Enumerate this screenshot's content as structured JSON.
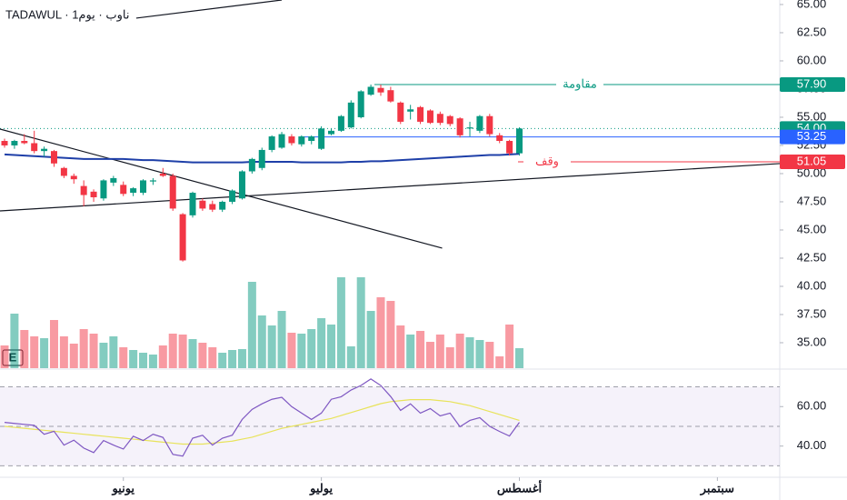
{
  "chart_data": {
    "type": "candlestick",
    "title": "TADAWUL · ناوب · يوم1",
    "badge": "E",
    "up_color": "#089981",
    "down_color": "#f23645",
    "open": [
      52.9,
      52.5,
      52.9,
      52.7,
      52.0,
      52.0,
      50.5,
      49.8,
      48.9,
      48.4,
      47.8,
      49.2,
      49.0,
      48.3,
      48.3,
      49.3,
      50.0,
      49.8,
      46.4,
      46.3,
      47.6,
      47.3,
      46.8,
      47.5,
      47.8,
      50.2,
      50.5,
      52.1,
      52.3,
      53.3,
      52.6,
      52.9,
      52.2,
      53.5,
      53.8,
      54.1,
      55.0,
      57.0,
      57.6,
      57.4,
      56.3,
      55.5,
      55.9,
      55.6,
      55.3,
      55.1,
      54.9,
      54.0,
      53.8,
      55.1,
      53.4,
      52.9,
      51.8
    ],
    "high": [
      53.1,
      53.0,
      53.5,
      53.8,
      52.4,
      52.1,
      50.6,
      50.0,
      49.4,
      48.6,
      49.5,
      49.8,
      49.3,
      48.8,
      49.5,
      49.6,
      50.5,
      50.0,
      46.5,
      48.4,
      47.8,
      47.6,
      47.6,
      48.6,
      50.3,
      51.4,
      52.3,
      53.4,
      53.7,
      53.5,
      53.4,
      53.4,
      54.2,
      54.0,
      55.2,
      56.5,
      57.4,
      57.9,
      57.9,
      57.7,
      56.4,
      56.1,
      56.0,
      55.7,
      55.5,
      55.2,
      55.0,
      54.6,
      55.2,
      55.3,
      53.6,
      53.0,
      54.1
    ],
    "low": [
      52.3,
      52.2,
      52.6,
      51.8,
      51.5,
      50.6,
      49.6,
      49.1,
      47.1,
      47.5,
      47.6,
      48.9,
      48.0,
      48.0,
      48.1,
      49.0,
      49.7,
      46.7,
      42.2,
      46.1,
      46.7,
      46.6,
      46.6,
      47.3,
      47.7,
      50.0,
      50.3,
      51.9,
      52.2,
      52.5,
      52.4,
      52.6,
      52.1,
      53.4,
      53.7,
      54.0,
      54.9,
      56.9,
      56.9,
      56.3,
      54.4,
      54.8,
      54.4,
      54.4,
      54.3,
      54.2,
      53.2,
      53.3,
      53.6,
      53.3,
      52.7,
      51.6,
      51.6
    ],
    "close": [
      52.5,
      52.9,
      52.7,
      52.0,
      52.2,
      50.9,
      49.8,
      49.5,
      48.1,
      47.9,
      49.4,
      49.6,
      48.2,
      48.7,
      49.4,
      49.4,
      49.8,
      46.9,
      42.3,
      48.3,
      46.9,
      46.8,
      47.5,
      48.5,
      50.2,
      51.3,
      52.1,
      53.3,
      53.5,
      52.7,
      53.3,
      53.3,
      54.0,
      53.8,
      55.1,
      56.3,
      57.3,
      57.7,
      57.2,
      56.4,
      54.6,
      55.7,
      54.6,
      54.5,
      54.5,
      54.4,
      53.4,
      54.1,
      55.1,
      53.5,
      52.9,
      51.8,
      54.0
    ],
    "volume": [
      25,
      60,
      42,
      35,
      33,
      53,
      35,
      27,
      43,
      38,
      28,
      35,
      23,
      20,
      17,
      15,
      25,
      38,
      37,
      32,
      28,
      23,
      17,
      20,
      21,
      95,
      58,
      47,
      63,
      39,
      38,
      43,
      55,
      48,
      100,
      24,
      100,
      63,
      78,
      74,
      47,
      37,
      41,
      29,
      37,
      23,
      38,
      34,
      31,
      29,
      13,
      48,
      22
    ],
    "moving_average": {
      "color": "#1e3fa8",
      "values": [
        51.7,
        51.65,
        51.6,
        51.55,
        51.5,
        51.45,
        51.4,
        51.35,
        51.3,
        51.3,
        51.3,
        51.3,
        51.3,
        51.25,
        51.2,
        51.2,
        51.15,
        51.1,
        51.05,
        51.0,
        51.0,
        51.0,
        51.0,
        51.0,
        51.0,
        51.05,
        51.05,
        51.05,
        51.05,
        51.05,
        51.0,
        51.0,
        51.0,
        51.0,
        51.0,
        51.05,
        51.05,
        51.1,
        51.1,
        51.15,
        51.2,
        51.25,
        51.3,
        51.35,
        51.4,
        51.45,
        51.5,
        51.55,
        51.6,
        51.65,
        51.65,
        51.7,
        51.75
      ]
    },
    "xlim": [
      -0.46,
      78.3
    ],
    "xticks": [
      {
        "value": 12,
        "label": "يونيو"
      },
      {
        "value": 32,
        "label": "يوليو"
      },
      {
        "value": 52,
        "label": "أغسطس"
      },
      {
        "value": 72,
        "label": "سبتمبر"
      }
    ],
    "ylim": [
      32.66,
      65.4
    ],
    "yticks": [
      {
        "value": 65,
        "label": "65.00"
      },
      {
        "value": 62.5,
        "label": "62.50"
      },
      {
        "value": 60,
        "label": "60.00"
      },
      {
        "value": 57.5,
        "label": "57.50"
      },
      {
        "value": 55,
        "label": "55.00"
      },
      {
        "value": 52.5,
        "label": "52.50"
      },
      {
        "value": 50,
        "label": "50.00"
      },
      {
        "value": 47.5,
        "label": "47.50"
      },
      {
        "value": 45,
        "label": "45.00"
      },
      {
        "value": 42.5,
        "label": "42.50"
      },
      {
        "value": 40,
        "label": "40.00"
      },
      {
        "value": 37.5,
        "label": "37.50"
      },
      {
        "value": 35,
        "label": "35.00"
      }
    ],
    "grid": false,
    "levels": [
      {
        "name": "مقاومة",
        "value": 57.9,
        "value_label": "57.90",
        "color": "#089981"
      },
      {
        "name": "وقف",
        "value": 51.05,
        "value_label": "51.05",
        "color": "#f23645"
      }
    ],
    "last_price": {
      "value": 54.0,
      "value_label": "54.00",
      "color": "#089981"
    },
    "ma_price": {
      "value": 53.25,
      "value_label": "53.25",
      "color": "#2962ff"
    },
    "trendlines": [
      {
        "from": [
          -0.46,
          53.95
        ],
        "to": [
          44.2,
          43.39
        ]
      },
      {
        "from": [
          -0.46,
          46.69
        ],
        "to": [
          78.3,
          50.89
        ]
      },
      {
        "from": [
          13.3,
          63.79
        ],
        "to": [
          28.0,
          65.4
        ]
      }
    ],
    "rsi": {
      "color": "#7e57c2",
      "ma_color": "#e8e35a",
      "values": [
        52,
        51.5,
        51,
        50.5,
        46,
        47.5,
        40.5,
        43,
        39,
        36.7,
        42.8,
        40.5,
        38.5,
        45,
        42.8,
        46,
        44.4,
        35.8,
        34.9,
        44,
        45.5,
        40.5,
        44,
        45.5,
        53.5,
        58.6,
        61.4,
        63.7,
        64.7,
        60,
        56.7,
        53.5,
        56.7,
        63.7,
        65,
        68.4,
        70.7,
        74,
        70.7,
        65.1,
        58.1,
        61.4,
        56.7,
        59,
        55.3,
        56.7,
        49.8,
        53,
        54.4,
        50,
        47.4,
        45.1,
        52
      ],
      "ma_values": [
        50,
        49.5,
        49,
        48.5,
        48,
        47.5,
        47,
        46.5,
        46,
        45.5,
        45,
        44.5,
        44,
        43.5,
        43,
        42.5,
        42,
        41.5,
        41,
        41,
        41,
        41.5,
        42,
        42.5,
        43.5,
        44.5,
        46,
        47.5,
        49,
        50,
        51,
        52,
        53,
        54,
        55.5,
        57,
        58.5,
        60,
        61.5,
        62.5,
        63,
        63.5,
        63.5,
        63.5,
        63,
        62.5,
        61.5,
        60.5,
        59,
        57.5,
        56,
        54.5,
        53
      ],
      "ylim": [
        24.2,
        79
      ],
      "yticks": [
        {
          "value": 60,
          "label": "60.00"
        },
        {
          "value": 40,
          "label": "40.00"
        }
      ],
      "bands": [
        30,
        50,
        70
      ]
    }
  }
}
